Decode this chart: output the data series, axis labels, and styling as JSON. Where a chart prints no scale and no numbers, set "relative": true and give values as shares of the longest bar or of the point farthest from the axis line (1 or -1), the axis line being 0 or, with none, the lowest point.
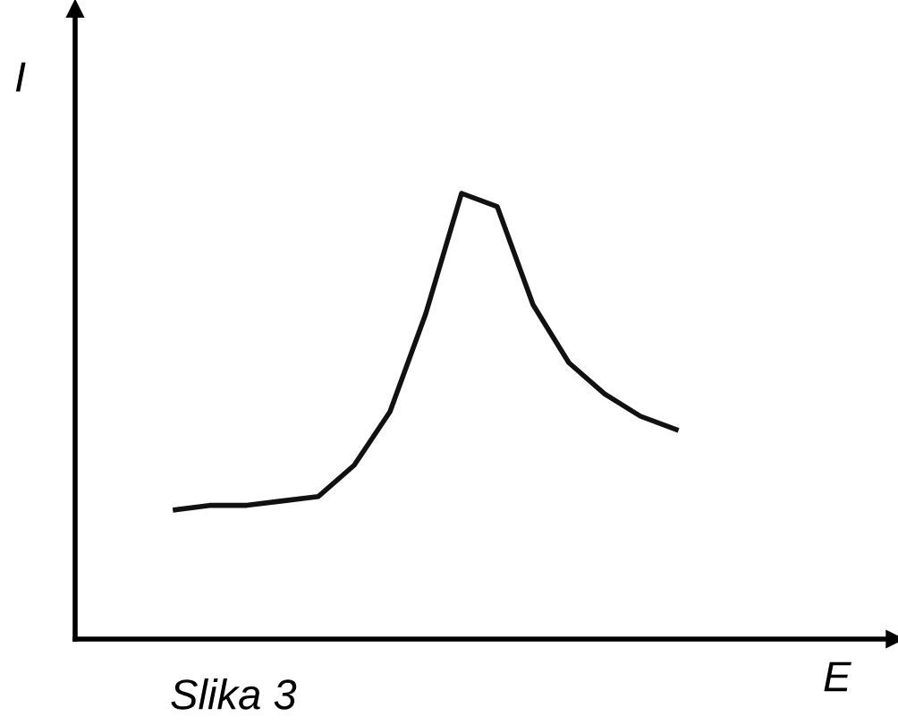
{
  "chart_data": {
    "type": "line",
    "relative": true,
    "xlabel": "E",
    "ylabel": "I",
    "categories": [
      null,
      null,
      null,
      null,
      null,
      null,
      null,
      null,
      null,
      null,
      null,
      null,
      null,
      null,
      null
    ],
    "series": [
      {
        "color": "#111111",
        "values": [
          0.29,
          0.3,
          0.3,
          0.31,
          0.32,
          0.39,
          0.51,
          0.73,
          1.0,
          0.97,
          0.75,
          0.62,
          0.55,
          0.5,
          0.47
        ]
      }
    ],
    "marker": "none",
    "line_style": "solid",
    "annotations": [
      "Slika 3"
    ]
  }
}
